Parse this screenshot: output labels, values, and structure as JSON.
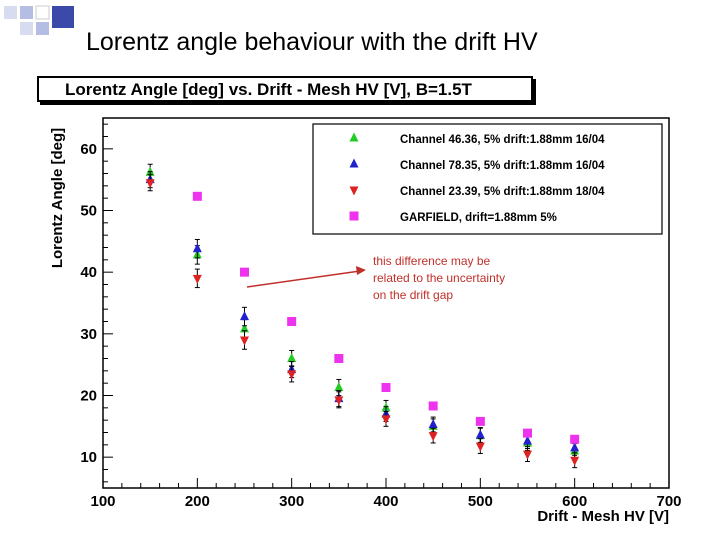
{
  "slide": {
    "title": "Lorentz angle behaviour with the drift HV"
  },
  "colors": {
    "green": "#22cc22",
    "blue": "#2222cc",
    "red": "#dd2222",
    "magenta": "#ee33ee",
    "arrow": "#c0302a",
    "annotation": "#c0302a",
    "deco_square": "#3b4aa8"
  },
  "chart_data": {
    "type": "scatter",
    "title": "Lorentz Angle [deg] vs. Drift - Mesh HV [V], B=1.5T",
    "xlabel": "Drift - Mesh HV [V]",
    "ylabel": "Lorentz Angle [deg]",
    "xlim": [
      100,
      700
    ],
    "ylim": [
      5,
      65
    ],
    "xticks": [
      100,
      200,
      300,
      400,
      500,
      600,
      700
    ],
    "yticks": [
      10,
      20,
      30,
      40,
      50,
      60
    ],
    "legend_position": "top-right",
    "grid": false,
    "series": [
      {
        "name": "Channel 46.36, 5% drift:1.88mm 16/04",
        "marker": "triangle-up",
        "color": "#22cc22",
        "x": [
          150,
          200,
          250,
          300,
          350,
          400,
          450,
          500,
          550,
          600
        ],
        "y": [
          56.2,
          42.8,
          30.8,
          26.0,
          21.3,
          18.0,
          15.0,
          13.5,
          12.3,
          11.0
        ],
        "err": [
          1.3,
          1.5,
          1.5,
          1.3,
          1.3,
          1.2,
          1.2,
          1.2,
          1.2,
          1.2
        ]
      },
      {
        "name": "Channel 78.35, 5% drift:1.88mm 16/04",
        "marker": "triangle-up",
        "color": "#2222cc",
        "x": [
          150,
          200,
          250,
          300,
          350,
          400,
          450,
          500,
          550,
          600
        ],
        "y": [
          55.0,
          43.8,
          32.8,
          24.2,
          19.5,
          17.0,
          15.3,
          13.6,
          12.6,
          11.5
        ],
        "err": [
          1.3,
          1.5,
          1.5,
          1.3,
          1.3,
          1.2,
          1.2,
          1.2,
          1.2,
          1.2
        ]
      },
      {
        "name": "Channel 23.39, 5% drift:1.88mm 18/04",
        "marker": "triangle-down",
        "color": "#dd2222",
        "x": [
          150,
          200,
          250,
          300,
          350,
          400,
          450,
          500,
          550,
          600
        ],
        "y": [
          54.5,
          39.0,
          29.0,
          23.5,
          19.3,
          16.2,
          13.5,
          11.8,
          10.5,
          9.5
        ],
        "err": [
          1.3,
          1.5,
          1.5,
          1.3,
          1.3,
          1.2,
          1.2,
          1.2,
          1.2,
          1.2
        ]
      },
      {
        "name": "GARFIELD, drift=1.88mm 5%",
        "marker": "square",
        "color": "#ee33ee",
        "x": [
          200,
          250,
          300,
          350,
          400,
          450,
          500,
          550,
          600
        ],
        "y": [
          52.3,
          40.0,
          32.0,
          26.0,
          21.3,
          18.3,
          15.8,
          13.9,
          12.9
        ],
        "err": null
      }
    ],
    "annotation": {
      "lines": [
        "this difference may be",
        "related to the uncertainty",
        "on the drift gap"
      ]
    }
  }
}
